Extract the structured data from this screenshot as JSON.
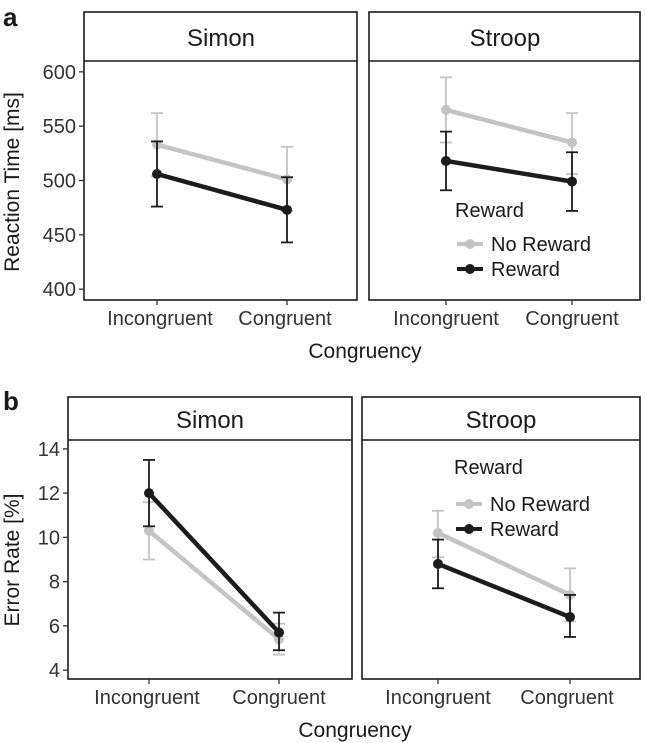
{
  "colors": {
    "no_reward": "#c4c4c4",
    "reward": "#1c1c1c"
  },
  "chart_data": [
    {
      "panel_label": "a",
      "type": "line",
      "ylabel": "Reaction Time [ms]",
      "xlabel": "Congruency",
      "categories": [
        "Incongruent",
        "Congruent"
      ],
      "ylim": [
        390,
        610
      ],
      "yticks": [
        400,
        450,
        500,
        550,
        600
      ],
      "ytick_labels": [
        "400",
        "450",
        "500",
        "550",
        "600"
      ],
      "legend": {
        "title": "Reward",
        "items": [
          "No Reward",
          "Reward"
        ]
      },
      "facets": [
        {
          "name": "Simon",
          "series": [
            {
              "name": "No Reward",
              "values": [
                533,
                501
              ],
              "err_low": [
                504,
                472
              ],
              "err_high": [
                562,
                531
              ]
            },
            {
              "name": "Reward",
              "values": [
                506,
                473
              ],
              "err_low": [
                476,
                443
              ],
              "err_high": [
                536,
                503
              ]
            }
          ]
        },
        {
          "name": "Stroop",
          "series": [
            {
              "name": "No Reward",
              "values": [
                565,
                535
              ],
              "err_low": [
                535,
                506
              ],
              "err_high": [
                595,
                562
              ]
            },
            {
              "name": "Reward",
              "values": [
                518,
                499
              ],
              "err_low": [
                491,
                472
              ],
              "err_high": [
                545,
                526
              ]
            }
          ]
        }
      ]
    },
    {
      "panel_label": "b",
      "type": "line",
      "ylabel": "Error Rate [%]",
      "xlabel": "Congruency",
      "categories": [
        "Incongruent",
        "Congruent"
      ],
      "ylim": [
        3.6,
        14.4
      ],
      "yticks": [
        4,
        6,
        8,
        10,
        12,
        14
      ],
      "ytick_labels": [
        "4",
        "6",
        "8",
        "10",
        "12",
        "14"
      ],
      "legend": {
        "title": "Reward",
        "items": [
          "No Reward",
          "Reward"
        ]
      },
      "facets": [
        {
          "name": "Simon",
          "series": [
            {
              "name": "No Reward",
              "values": [
                10.3,
                5.4
              ],
              "err_low": [
                9.0,
                4.7
              ],
              "err_high": [
                11.6,
                6.1
              ]
            },
            {
              "name": "Reward",
              "values": [
                12.0,
                5.7
              ],
              "err_low": [
                10.5,
                4.9
              ],
              "err_high": [
                13.5,
                6.6
              ]
            }
          ]
        },
        {
          "name": "Stroop",
          "series": [
            {
              "name": "No Reward",
              "values": [
                10.2,
                7.4
              ],
              "err_low": [
                9.1,
                6.2
              ],
              "err_high": [
                11.2,
                8.6
              ]
            },
            {
              "name": "Reward",
              "values": [
                8.8,
                6.4
              ],
              "err_low": [
                7.7,
                5.5
              ],
              "err_high": [
                9.9,
                7.4
              ]
            }
          ]
        }
      ]
    }
  ]
}
